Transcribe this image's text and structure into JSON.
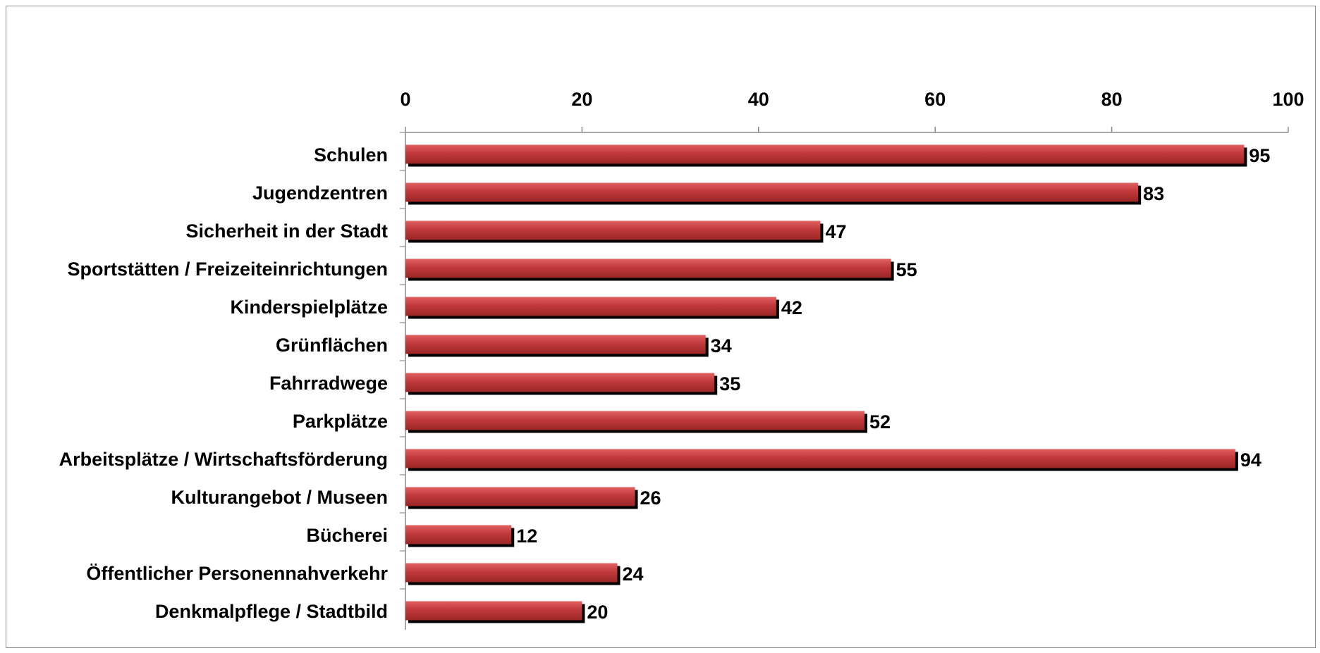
{
  "chart_data": {
    "type": "bar",
    "orientation": "horizontal",
    "categories": [
      "Schulen",
      "Jugendzentren",
      "Sicherheit in der Stadt",
      "Sportstätten / Freizeiteinrichtungen",
      "Kinderspielplätze",
      "Grünflächen",
      "Fahrradwege",
      "Parkplätze",
      "Arbeitsplätze / Wirtschaftsförderung",
      "Kulturangebot / Museen",
      "Bücherei",
      "Öffentlicher Personennahverkehr",
      "Denkmalpflege / Stadtbild"
    ],
    "values": [
      95,
      83,
      47,
      55,
      42,
      34,
      35,
      52,
      94,
      26,
      12,
      24,
      20
    ],
    "xlim": [
      0,
      100
    ],
    "xticks": [
      0,
      20,
      40,
      60,
      80,
      100
    ],
    "axis_position": "top",
    "data_labels": true,
    "grid": false,
    "legend": "none",
    "bar_color": "#c0393b",
    "bar_shadow_color": "#000000"
  }
}
